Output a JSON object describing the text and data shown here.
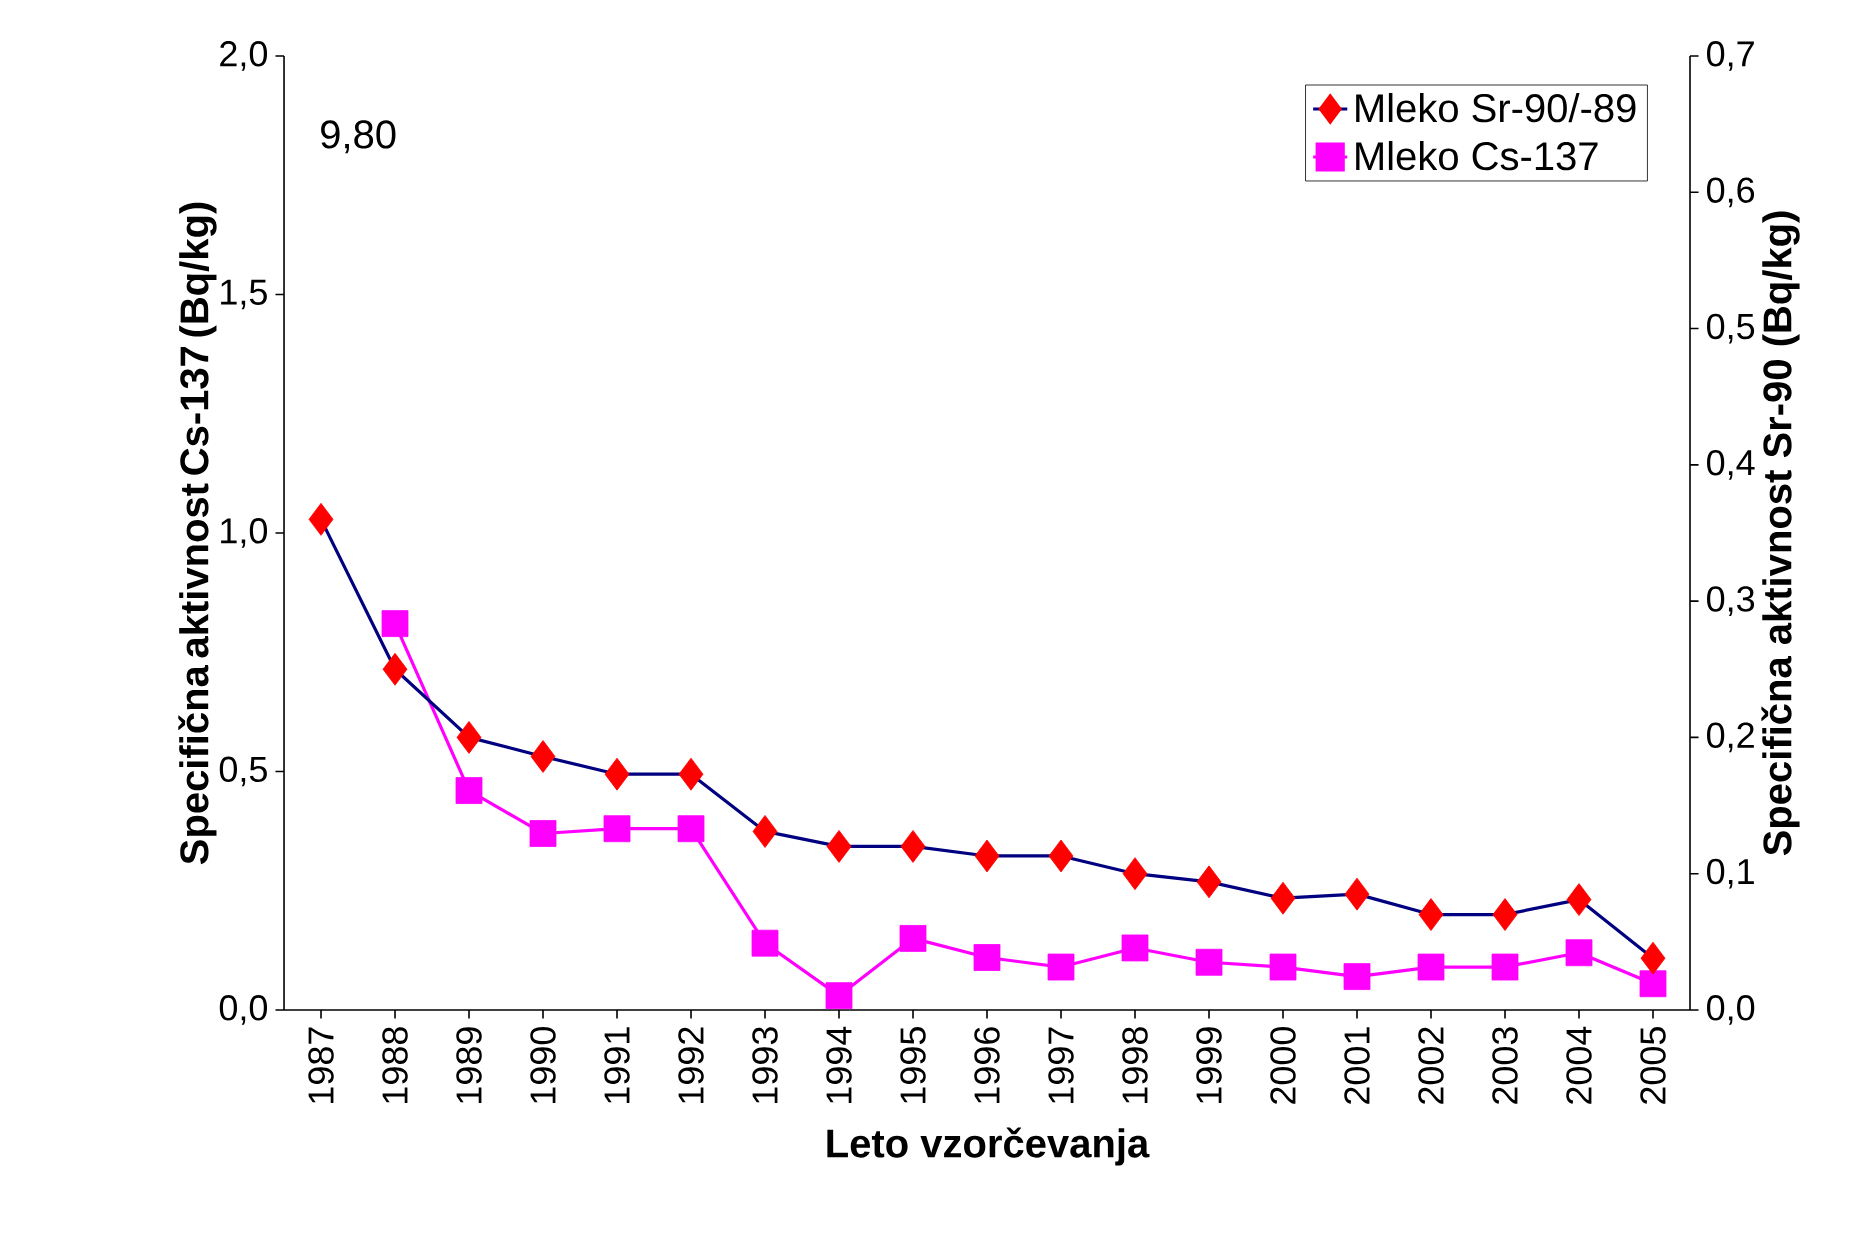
{
  "chart_data": {
    "type": "line",
    "categories": [
      "1987",
      "1988",
      "1989",
      "1990",
      "1991",
      "1992",
      "1993",
      "1994",
      "1995",
      "1996",
      "1997",
      "1998",
      "1999",
      "2000",
      "2001",
      "2002",
      "2003",
      "2004",
      "2005"
    ],
    "xlabel": "Leto vzorčevanja",
    "ylabel": "Specifična aktivnost Cs-137 (Bq/kg)",
    "y2label": "Specifična aktivnost Sr-90 (Bq/kg)",
    "ylim": [
      0,
      2.0
    ],
    "yticks": [
      {
        "value": 0,
        "label": "0,0"
      },
      {
        "value": 0.5,
        "label": "0,5"
      },
      {
        "value": 1.0,
        "label": "1,0"
      },
      {
        "value": 1.5,
        "label": "1,5"
      },
      {
        "value": 2.0,
        "label": "2,0"
      }
    ],
    "y2lim": [
      0,
      0.7
    ],
    "y2ticks": [
      {
        "value": 0,
        "label": "0,0"
      },
      {
        "value": 0.1,
        "label": "0,1"
      },
      {
        "value": 0.2,
        "label": "0,2"
      },
      {
        "value": 0.3,
        "label": "0,3"
      },
      {
        "value": 0.4,
        "label": "0,4"
      },
      {
        "value": 0.5,
        "label": "0,5"
      },
      {
        "value": 0.6,
        "label": "0,6"
      },
      {
        "value": 0.7,
        "label": "0,7"
      }
    ],
    "grid": false,
    "annotations": [
      "9,80"
    ],
    "legend": "top right",
    "series": [
      {
        "name": "Mleko Sr-90/-89",
        "axis": "y2",
        "marker": "diamond",
        "color": "#000080",
        "colors": [
          "#ff0000",
          "#ff0000",
          "#ff0000",
          "#ff0000",
          "#ff0000",
          "#ff0000",
          "#ff0000",
          "#ff0000",
          "#ff0000",
          "#ff0000",
          "#ff0000",
          "#ff0000",
          "#ff0000",
          "#ff0000",
          "#ff0000",
          "#ff0000",
          "#ff0000",
          "#ff0000",
          "#ff0000"
        ],
        "values": [
          0.36,
          0.25,
          0.2,
          0.186,
          0.173,
          0.173,
          0.131,
          0.12,
          0.12,
          0.113,
          0.113,
          0.1,
          0.094,
          0.082,
          0.085,
          0.07,
          0.07,
          0.081,
          0.038
        ]
      },
      {
        "name": "Mleko Cs-137",
        "axis": "y",
        "marker": "square",
        "color": "#ff00ff",
        "values": [
          null,
          0.81,
          0.46,
          0.37,
          0.38,
          0.38,
          0.14,
          0.03,
          0.15,
          0.11,
          0.09,
          0.13,
          0.1,
          0.09,
          0.07,
          0.09,
          0.09,
          0.12,
          0.055
        ]
      }
    ]
  }
}
